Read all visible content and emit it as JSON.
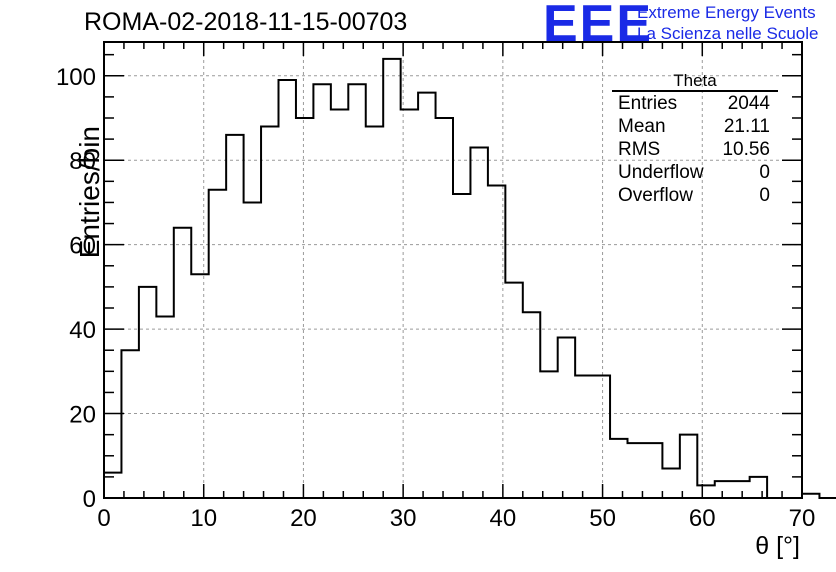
{
  "title": "ROMA-02-2018-11-15-00703",
  "logo": {
    "text": "EEE",
    "line1": "Extreme Energy Events",
    "line2": "La Scienza nelle Scuole",
    "color": "#1a2ae6"
  },
  "stats_box": {
    "title": "Theta",
    "rows": [
      {
        "label": "Entries",
        "value": "2044"
      },
      {
        "label": "Mean",
        "value": "21.11"
      },
      {
        "label": "RMS",
        "value": "10.56"
      },
      {
        "label": "Underflow",
        "value": "0"
      },
      {
        "label": "Overflow",
        "value": "0"
      }
    ]
  },
  "chart_data": {
    "type": "bar",
    "style": "step-histogram",
    "bin_width": 1.75,
    "x_start": 0,
    "values": [
      6,
      35,
      50,
      43,
      64,
      53,
      73,
      86,
      70,
      88,
      99,
      90,
      98,
      92,
      98,
      88,
      104,
      92,
      96,
      90,
      72,
      83,
      74,
      51,
      44,
      30,
      38,
      29,
      29,
      14,
      13,
      13,
      7,
      15,
      3,
      4,
      4,
      5,
      0,
      0,
      1,
      0
    ],
    "xlabel": "θ [°]",
    "ylabel": "Entries/bin",
    "xlim": [
      0,
      70
    ],
    "ylim": [
      0,
      108
    ],
    "x_ticks": [
      0,
      10,
      20,
      30,
      40,
      50,
      60,
      70
    ],
    "y_ticks": [
      0,
      20,
      40,
      60,
      80,
      100
    ],
    "grid": true,
    "legend": "top-right"
  }
}
